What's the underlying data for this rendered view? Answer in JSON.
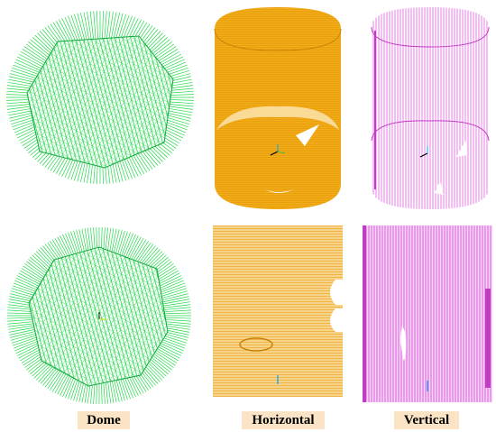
{
  "labels": {
    "dome": "Dome",
    "horizontal": "Horizontal",
    "vertical": "Vertical"
  },
  "colors": {
    "dome": "#22d84a",
    "dome_dark": "#0fa83a",
    "horizontal": "#f4ae18",
    "horizontal_light": "#f7d48d",
    "vertical": "#e35be3",
    "vertical_light": "#f2b8f2",
    "label_bg": "#fbe3c6"
  }
}
